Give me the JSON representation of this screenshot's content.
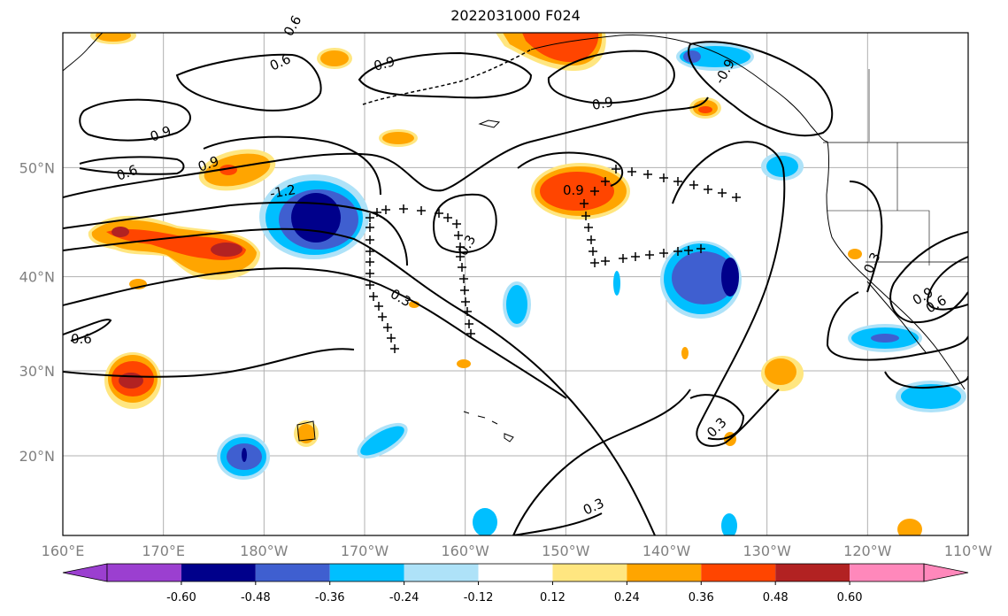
{
  "title": "2022031000 F024",
  "map": {
    "lon_range": [
      160,
      250
    ],
    "lat_range": [
      10,
      60
    ],
    "lon_ticks": [
      {
        "lon": 160,
        "label": "160°E"
      },
      {
        "lon": 170,
        "label": "170°E"
      },
      {
        "lon": 180,
        "label": "180°W"
      },
      {
        "lon": 190,
        "label": "170°W"
      },
      {
        "lon": 200,
        "label": "160°W"
      },
      {
        "lon": 210,
        "label": "150°W"
      },
      {
        "lon": 220,
        "label": "140°W"
      },
      {
        "lon": 230,
        "label": "130°W"
      },
      {
        "lon": 240,
        "label": "120°W"
      },
      {
        "lon": 250,
        "label": "110°W"
      }
    ],
    "lat_ticks": [
      {
        "lat": 20,
        "label": "20°N"
      },
      {
        "lat": 30,
        "label": "30°N"
      },
      {
        "lat": 40,
        "label": "40°N"
      },
      {
        "lat": 50,
        "label": "50°N"
      }
    ],
    "grid": true,
    "contour_labels": [
      "0.6",
      "0.9",
      "0.9",
      "0.9",
      "0.6",
      "0.9",
      "-1.2",
      "0.9",
      "0.3",
      "0.3",
      "0.6",
      "0.3",
      "0.9",
      "0.6",
      "0.3",
      "0.3",
      "0.6",
      "-0.9"
    ]
  },
  "colorbar": {
    "levels": [
      "-0.60",
      "-0.48",
      "-0.36",
      "-0.24",
      "-0.12",
      "0.12",
      "0.24",
      "0.36",
      "0.48",
      "0.60"
    ],
    "colors": [
      "#9b3fd0",
      "#00008b",
      "#3f5fd0",
      "#00bfff",
      "#aee2f8",
      "#ffffff",
      "#ffe680",
      "#ffa500",
      "#ff4500",
      "#b22222",
      "#ff88bb"
    ]
  }
}
